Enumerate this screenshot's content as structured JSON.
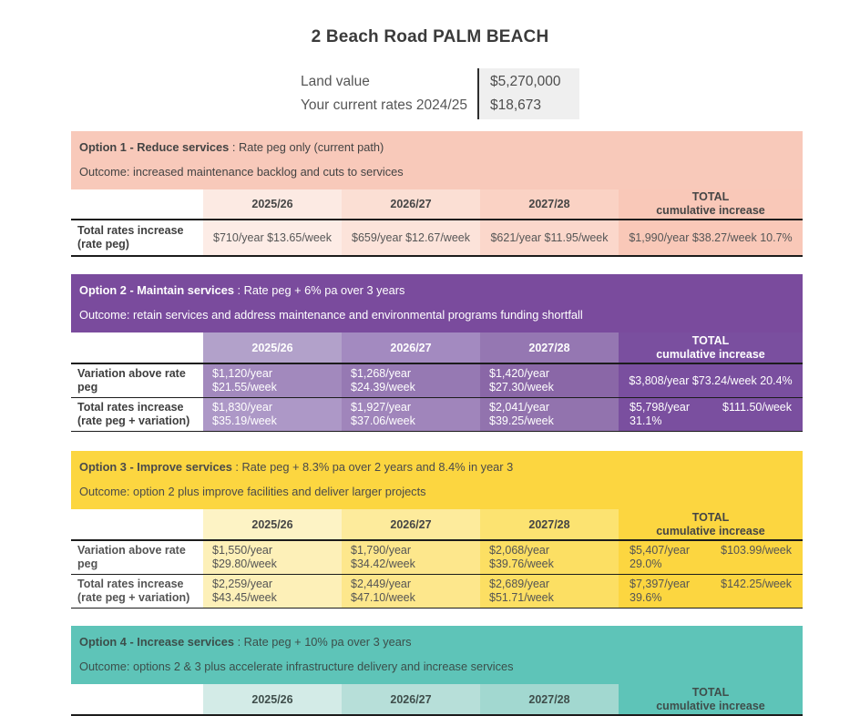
{
  "title": "2 Beach Road PALM BEACH",
  "info": {
    "land_value_label": "Land value",
    "land_value": "$5,270,000",
    "current_rates_label": "Your current rates 2024/25",
    "current_rates": "$18,673"
  },
  "columns_note": "Year columns shared by all option tables",
  "options": [
    {
      "name": "option-1",
      "banner": {
        "title": "Option 1 - Reduce services",
        "subtitle": ": Rate peg only (current path)",
        "outcome": "Outcome: increased maintenance backlog and cuts to services"
      },
      "columns": [
        "2025/26",
        "2026/27",
        "2027/28"
      ],
      "total_header": {
        "line1": "TOTAL",
        "line2": "cumulative increase"
      },
      "rows": [
        {
          "label": "Total rates increase (rate peg)",
          "cells": [
            "$710/year $13.65/week",
            "$659/year $12.67/week",
            "$621/year $11.95/week"
          ],
          "total": "$1,990/year $38.27/week 10.7%"
        }
      ],
      "palette": {
        "banner": "#f8c9ba",
        "total_column": "#f9c8b8",
        "header_cells": [
          "#fceae3",
          "#fbdfd4",
          "#fad2c4"
        ],
        "data_cells": [
          "#fdece6",
          "#fce3da",
          "#fbd7cb"
        ]
      }
    },
    {
      "name": "option-2",
      "banner": {
        "title": "Option 2 - Maintain services",
        "subtitle": ": Rate peg + 6% pa over 3 years",
        "outcome": "Outcome: retain services and address maintenance and environmental programs funding shortfall"
      },
      "columns": [
        "2025/26",
        "2026/27",
        "2027/28"
      ],
      "total_header": {
        "line1": "TOTAL",
        "line2": "cumulative increase"
      },
      "rows": [
        {
          "label": "Variation above rate peg",
          "cells": [
            {
              "year": "$1,120/year",
              "week": "$21.55/week"
            },
            {
              "year": "$1,268/year",
              "week": "$24.39/week"
            },
            {
              "year": "$1,420/year",
              "week": "$27.30/week"
            }
          ],
          "total": "$3,808/year $73.24/week 20.4%"
        },
        {
          "label": "Total rates increase (rate peg + variation)",
          "cells": [
            {
              "year": "$1,830/year",
              "week": "$35.19/week"
            },
            {
              "year": "$1,927/year",
              "week": "$37.06/week"
            },
            {
              "year": "$2,041/year",
              "week": "$39.25/week"
            }
          ],
          "total": {
            "year": "$5,798/year",
            "week": "$111.50/week",
            "pct": "31.1%"
          }
        }
      ],
      "palette": {
        "banner": "#7a4b9d",
        "total_column": "#7a4f9f",
        "header_cells": [
          "#b2a1ca",
          "#a38ac0",
          "#9577b2"
        ],
        "row1_cells": [
          "#a289bd",
          "#9679b3",
          "#8a67a7"
        ],
        "row2_cells": [
          "#ad98c7",
          "#a085bb",
          "#9273ae"
        ]
      }
    },
    {
      "name": "option-3",
      "banner": {
        "title": "Option 3 - Improve services",
        "subtitle": ": Rate peg + 8.3% pa over 2 years and 8.4% in year 3",
        "outcome": "Outcome: option 2 plus improve facilities and deliver larger projects"
      },
      "columns": [
        "2025/26",
        "2026/27",
        "2027/28"
      ],
      "total_header": {
        "line1": "TOTAL",
        "line2": "cumulative increase"
      },
      "rows": [
        {
          "label": "Variation above rate peg",
          "cells": [
            {
              "year": "$1,550/year",
              "week": "$29.80/week"
            },
            {
              "year": "$1,790/year",
              "week": "$34.42/week"
            },
            {
              "year": "$2,068/year",
              "week": "$39.76/week"
            }
          ],
          "total": {
            "year": "$5,407/year",
            "week": "$103.99/week",
            "pct": "29.0%"
          }
        },
        {
          "label": "Total rates increase (rate peg + variation)",
          "cells": [
            {
              "year": "$2,259/year",
              "week": "$43.45/week"
            },
            {
              "year": "$2,449/year",
              "week": "$47.10/week"
            },
            {
              "year": "$2,689/year",
              "week": "$51.71/week"
            }
          ],
          "total": {
            "year": "$7,397/year",
            "week": "$142.25/week",
            "pct": "39.6%"
          }
        }
      ],
      "palette": {
        "banner": "#fcd640",
        "total_column": "#fcd640",
        "header_cells": [
          "#fdf3c5",
          "#fdeb9c",
          "#fce371"
        ],
        "data_cells": [
          "#fdf0b8",
          "#fde78c",
          "#fcdf63"
        ]
      }
    },
    {
      "name": "option-4",
      "banner": {
        "title": "Option 4 - Increase services",
        "subtitle": ": Rate peg + 10% pa over 3 years",
        "outcome": "Outcome: options 2 & 3 plus accelerate infrastructure delivery and increase services"
      },
      "columns": [
        "2025/26",
        "2026/27",
        "2027/28"
      ],
      "total_header": {
        "line1": "TOTAL",
        "line2": "cumulative increase"
      },
      "rows": [],
      "palette": {
        "banner": "#5ec4b8",
        "total_column": "#5ec4b8",
        "header_cells": [
          "#d3ebe7",
          "#b7dfd9",
          "#a2d8d0"
        ]
      }
    }
  ]
}
